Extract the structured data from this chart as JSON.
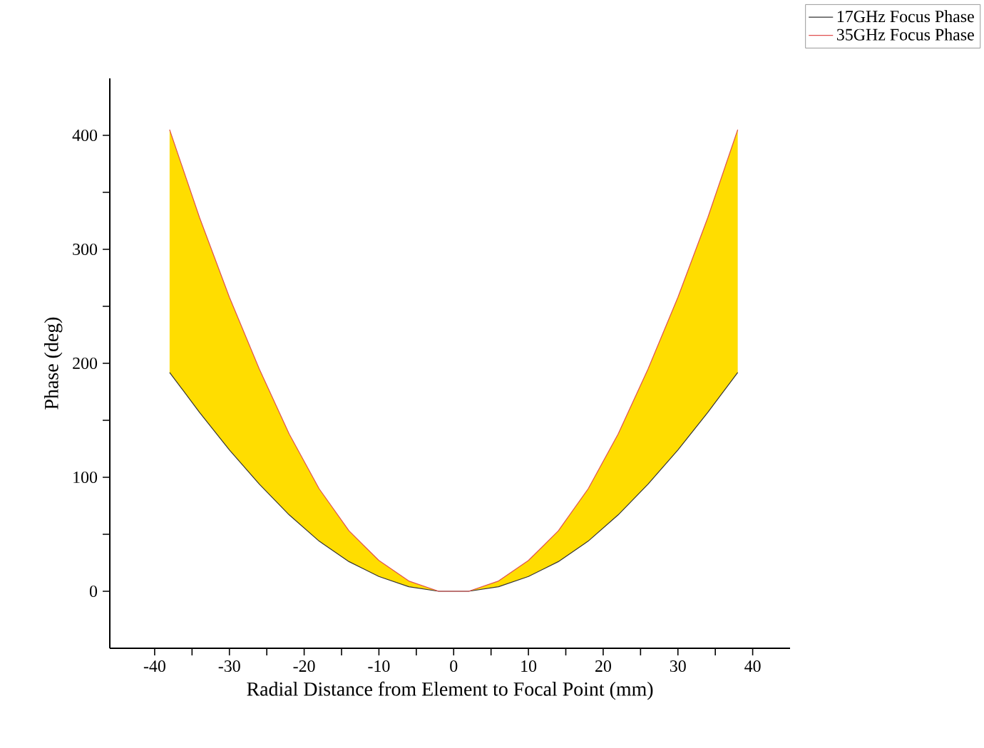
{
  "chart_data": {
    "type": "line",
    "xlabel": "Radial Distance from Element to Focal Point (mm)",
    "ylabel": "Phase (deg)",
    "xlim": [
      -46,
      45
    ],
    "ylim": [
      -50,
      450
    ],
    "xticks": [
      -40,
      {
        "value": -35,
        "label": null
      },
      -30,
      {
        "value": -25,
        "label": null
      },
      -20,
      {
        "value": -15,
        "label": null
      },
      -10,
      {
        "value": -5,
        "label": null
      },
      0,
      {
        "value": 5,
        "label": null
      },
      10,
      {
        "value": 15,
        "label": null
      },
      20,
      {
        "value": 25,
        "label": null
      },
      30,
      {
        "value": 35,
        "label": null
      },
      40
    ],
    "yticks": [
      0,
      {
        "value": 50,
        "label": null
      },
      100,
      {
        "value": 150,
        "label": null
      },
      200,
      {
        "value": 250,
        "label": null
      },
      300,
      {
        "value": 350,
        "label": null
      },
      400
    ],
    "x": [
      -38,
      -34,
      -30,
      -26,
      -22,
      -18,
      -14,
      -10,
      -6,
      -2,
      2,
      6,
      10,
      14,
      18,
      22,
      26,
      30,
      34,
      38
    ],
    "legend": "top right",
    "grid": false,
    "marker": "none",
    "line_style": "solid",
    "series": [
      {
        "name": "17GHz Focus Phase",
        "color": "#333333",
        "values": [
          192,
          157,
          124,
          94,
          67,
          44,
          26,
          13,
          4,
          0,
          0,
          4,
          13,
          26,
          44,
          67,
          94,
          124,
          157,
          192
        ]
      },
      {
        "name": "35GHz Focus Phase",
        "color": "#e05050",
        "values": [
          405,
          328,
          258,
          195,
          138,
          90,
          53,
          27,
          9,
          0,
          0,
          9,
          27,
          53,
          90,
          138,
          195,
          258,
          328,
          405
        ],
        "lower": [
          192,
          157,
          124,
          94,
          67,
          44,
          26,
          13,
          4,
          0,
          0,
          4,
          13,
          26,
          44,
          67,
          94,
          124,
          157,
          192
        ],
        "upper": [
          405,
          328,
          258,
          195,
          138,
          90,
          53,
          27,
          9,
          0,
          0,
          9,
          27,
          53,
          90,
          138,
          195,
          258,
          328,
          405
        ]
      }
    ]
  }
}
